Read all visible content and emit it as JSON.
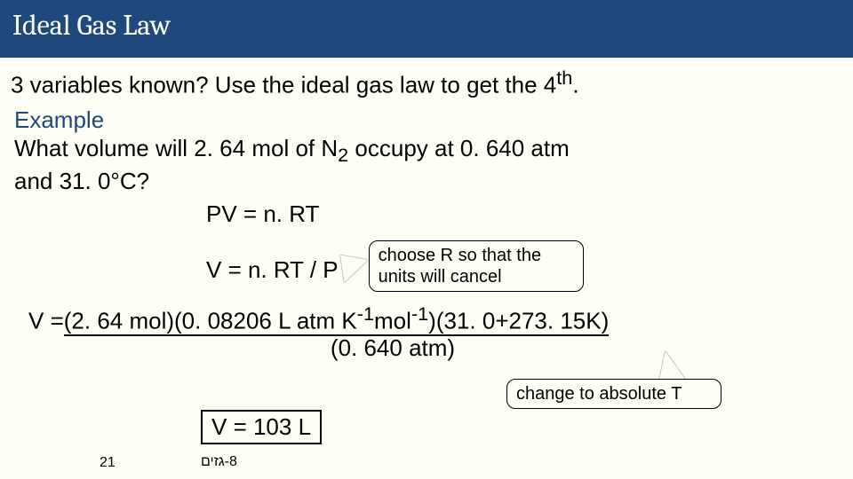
{
  "title": "Ideal Gas Law",
  "intro_a": "3 variables known? Use the ideal gas law to get the 4",
  "intro_b": "th",
  "intro_c": ".",
  "example_label": "Example",
  "question_a": "What volume will 2. 64 mol of N",
  "question_sub": "2",
  "question_b": " occupy at 0. 640 atm",
  "question_c": "and 31. 0°C?",
  "eq1": "PV = n. RT",
  "eq2": "V = n. RT / P",
  "callout1_l1": "choose R so that the",
  "callout1_l2": "units will cancel",
  "full_eq_prefix": "V =",
  "full_eq_num_a": "(2. 64 mol)(0. 08206 L atm K",
  "full_eq_sup1": "-1",
  "full_eq_num_b": "mol",
  "full_eq_sup2": "-1",
  "full_eq_num_c": ")(31. 0+273. 15K)",
  "full_eq_den": "(0. 640 atm)",
  "callout2": "change to absolute T",
  "result": "V = 103 L",
  "page_num": "21",
  "hebrew": "8-גזים",
  "colors": {
    "title_bg": "#1f497d",
    "title_fg": "#ffffff",
    "body_bg": "#fffff6",
    "accent": "#1f497d",
    "text": "#000000"
  },
  "fonts": {
    "title_family": "Cambria",
    "title_size_pt": 32,
    "body_size_pt": 26,
    "callout_size_pt": 20,
    "footer_size_pt": 16
  }
}
